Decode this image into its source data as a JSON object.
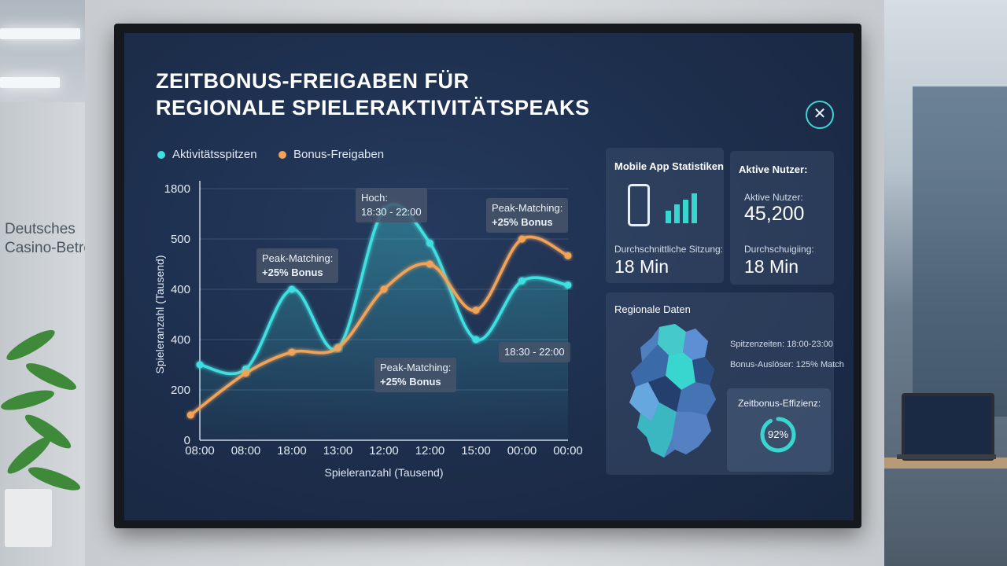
{
  "wall_sign": [
    "Deutsches",
    "Casino-Betrei"
  ],
  "dashboard": {
    "title_line1": "ZEITBONUS-FREIGABEN FÜR",
    "title_line2": "REGIONALE SPIELERAKTIVITÄTSPEAKS",
    "close_symbol": "✕"
  },
  "legend": {
    "activity": "Aktivitätsspitzen",
    "bonus": "Bonus-Freigaben"
  },
  "colors": {
    "activity": "#3fe0e0",
    "bonus": "#f2a35a",
    "card_bg": "#34486a",
    "accent": "#39d6d0"
  },
  "chart_data": {
    "type": "line",
    "ylabel": "Spieleranzahl (Tausend)",
    "xlabel": "Spieleranzahl (Tausend)",
    "y_tick_labels": [
      "1800",
      "500",
      "400",
      "400",
      "200",
      "0"
    ],
    "x_tick_labels": [
      "08:00",
      "08:00",
      "18:00",
      "13:00",
      "12:00",
      "12:00",
      "15:00",
      "00:00",
      "00:00"
    ],
    "grid": true,
    "series": [
      {
        "name": "Aktivitätsspitzen",
        "color": "#3fe0e0",
        "points": [
          [
            0,
            1.8
          ],
          [
            1,
            1.7
          ],
          [
            2,
            3.6
          ],
          [
            3,
            2.2
          ],
          [
            4,
            5.5
          ],
          [
            5,
            4.7
          ],
          [
            6,
            2.4
          ],
          [
            7,
            3.8
          ],
          [
            8,
            3.7
          ]
        ]
      },
      {
        "name": "Bonus-Freigaben",
        "color": "#f2a35a",
        "points": [
          [
            -0.2,
            0.6
          ],
          [
            1,
            1.6
          ],
          [
            2,
            2.1
          ],
          [
            3,
            2.2
          ],
          [
            4,
            3.6
          ],
          [
            5,
            4.2
          ],
          [
            6,
            3.1
          ],
          [
            7,
            4.8
          ],
          [
            8,
            4.4
          ]
        ]
      }
    ],
    "annotations": [
      {
        "line1": "Hoch:",
        "line2": "18:30 - 22:00"
      },
      {
        "line1": "Peak-Matching:",
        "line2": "+25% Bonus"
      },
      {
        "line1": "Peak-Matching:",
        "line2": "+25% Bonus"
      },
      {
        "line1": "Peak-Matching:",
        "line2": "+25% Bonus"
      },
      {
        "line1": "18:30 - 22:00",
        "line2": ""
      }
    ]
  },
  "mobile_stats": {
    "title": "Mobile App Statistiken",
    "session_label": "Durchschnittliche Sitzung:",
    "session_value": "18 Min"
  },
  "active_users": {
    "title": "Aktive Nutzer:",
    "users_label": "Aktive Nutzer:",
    "users_value": "45,200",
    "duration_label": "Durchschuigiing:",
    "duration_value": "18 Min"
  },
  "regional": {
    "title": "Regionale Daten",
    "peak_times": "Spitzenzeiten: 18:00-23:00",
    "bonus_trigger": "Bonus-Auslöser: 125% Match"
  },
  "efficiency": {
    "title": "Zeitbonus-Effizienz:",
    "value_text": "92%",
    "value": 0.92
  }
}
